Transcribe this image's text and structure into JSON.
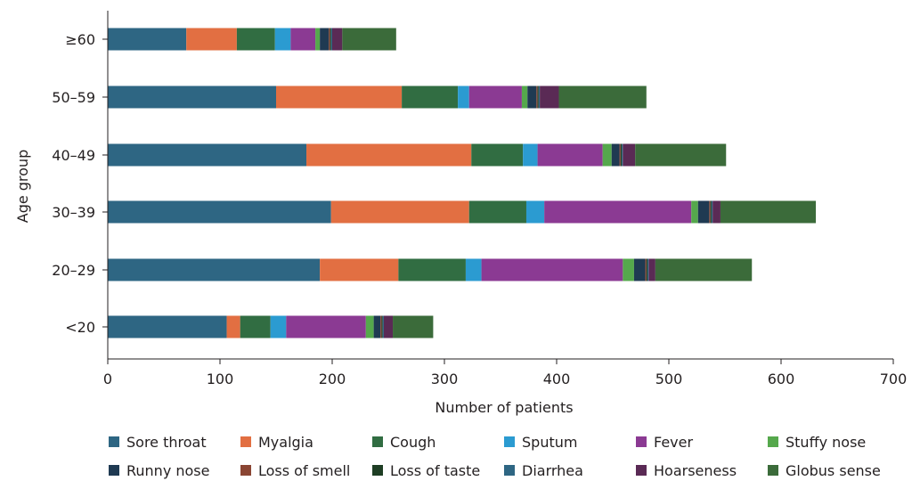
{
  "chart_data": {
    "type": "bar",
    "orientation": "horizontal",
    "stacked": true,
    "xlabel": "Number of patients",
    "ylabel": "Age group",
    "xlim": [
      0,
      700
    ],
    "xticks": [
      0,
      100,
      200,
      300,
      400,
      500,
      600,
      700
    ],
    "categories": [
      "≥60",
      "50–59",
      "40–49",
      "30–39",
      "20–29",
      "<20"
    ],
    "grid": false,
    "legend_position": "bottom",
    "series": [
      {
        "name": "Sore throat",
        "color": "#2e6683",
        "values": [
          70,
          150,
          177,
          199,
          189,
          106
        ]
      },
      {
        "name": "Myalgia",
        "color": "#e26f42",
        "values": [
          45,
          112,
          147,
          123,
          70,
          12
        ]
      },
      {
        "name": "Cough",
        "color": "#316d42",
        "values": [
          34,
          50,
          46,
          51,
          60,
          27
        ]
      },
      {
        "name": "Sputum",
        "color": "#2b9bd1",
        "values": [
          14,
          10,
          13,
          16,
          14,
          14
        ]
      },
      {
        "name": "Fever",
        "color": "#8b3a93",
        "values": [
          22,
          47,
          58,
          131,
          126,
          71
        ]
      },
      {
        "name": "Stuffy nose",
        "color": "#55a84c",
        "values": [
          4,
          5,
          8,
          6,
          10,
          7
        ]
      },
      {
        "name": "Runny nose",
        "color": "#1f3a52",
        "values": [
          8,
          8,
          7,
          10,
          10,
          6
        ]
      },
      {
        "name": "Loss of smell",
        "color": "#8a4533",
        "values": [
          1,
          1,
          1,
          1,
          1,
          1
        ]
      },
      {
        "name": "Loss of taste",
        "color": "#1e3e24",
        "values": [
          1,
          1,
          1,
          1,
          1,
          1
        ]
      },
      {
        "name": "Diarrhea",
        "color": "#2e6683",
        "values": [
          1,
          1,
          1,
          1,
          1,
          1
        ]
      },
      {
        "name": "Hoarseness",
        "color": "#5a2a55",
        "values": [
          9,
          17,
          11,
          7,
          6,
          8
        ]
      },
      {
        "name": "Globus sense",
        "color": "#3b6b3a",
        "values": [
          48,
          78,
          81,
          85,
          86,
          36
        ]
      }
    ]
  }
}
